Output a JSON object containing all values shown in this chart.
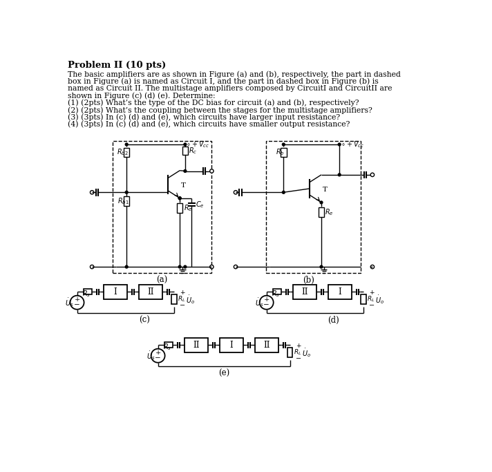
{
  "title": "Problem II (10 pts)",
  "body_text": [
    "The basic amplifiers are as shown in Figure (a) and (b), respectively, the part in dashed",
    "box in Figure (a) is named as Circuit I, and the part in dashed box in Figure (b) is",
    "named as Circuit II. The multistage amplifiers composed by CircuitI and CircuitII are",
    "shown in Figure (c) (d) (e). Determine:",
    "(1) (2pts) What’s the type of the DC bias for circuit (a) and (b), respectively?",
    "(2) (2pts) What’s the coupling between the stages for the multistage amplifiers?",
    "(3) (3pts) In (c) (d) and (e), which circuits have larger input resistance?",
    "(4) (3pts) In (c) (d) and (e), which circuits have smaller output resistance?"
  ],
  "bg_color": "#ffffff",
  "line_color": "#000000",
  "text_color": "#000000"
}
